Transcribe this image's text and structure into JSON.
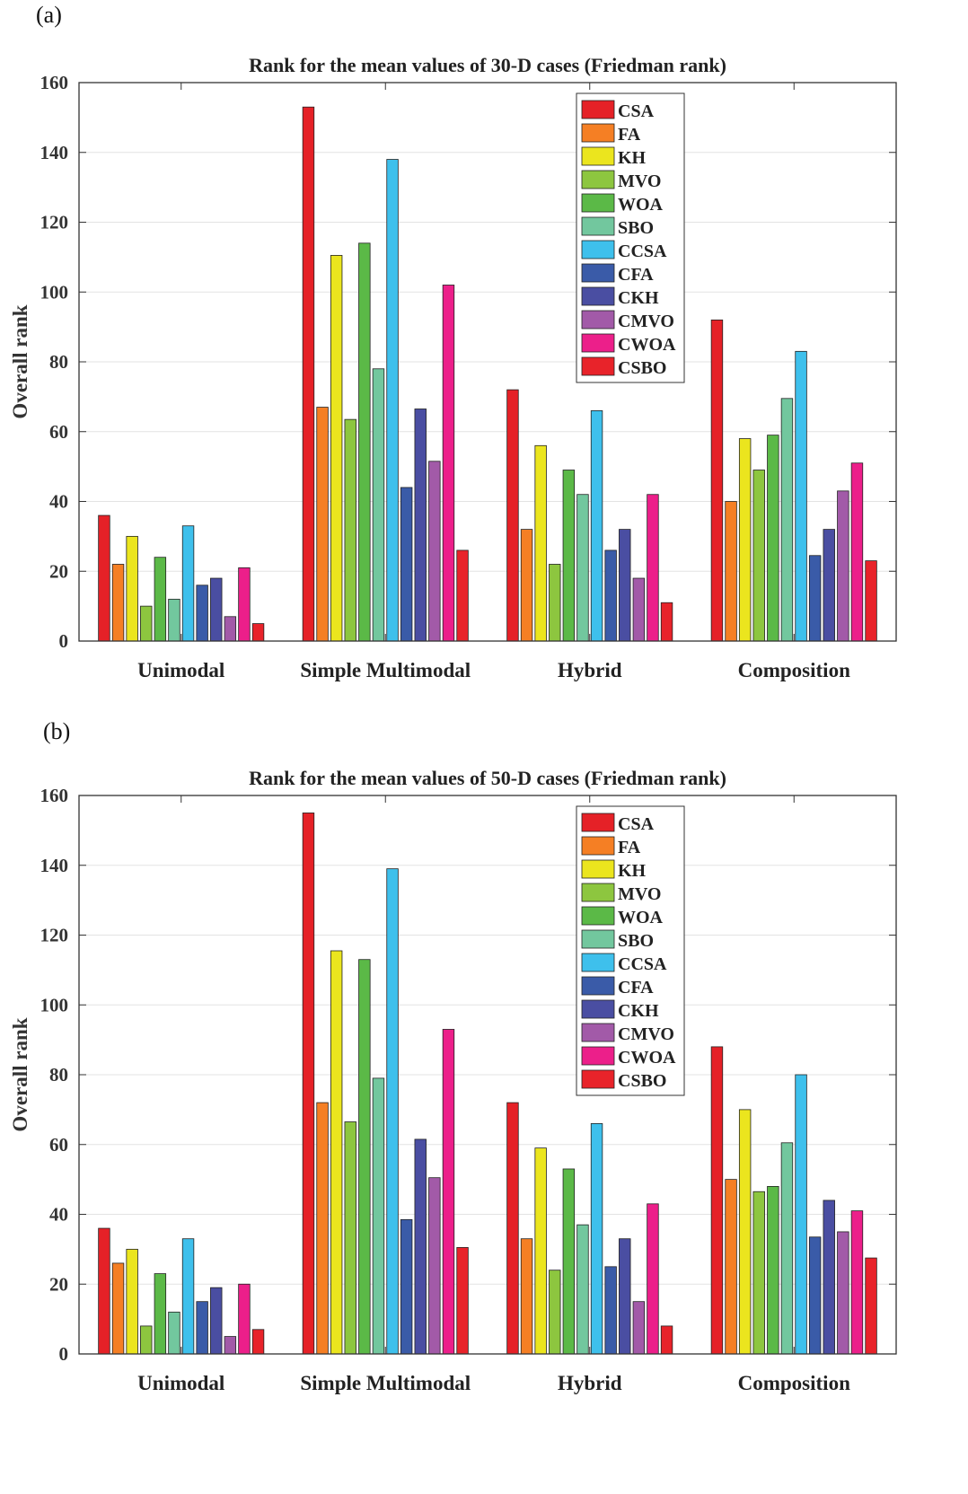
{
  "panels": [
    {
      "label": "(a)"
    },
    {
      "label": "(b)"
    }
  ],
  "series_colors": [
    "#e52127",
    "#f57f24",
    "#ebe51e",
    "#8dc63f",
    "#5bb947",
    "#72c79e",
    "#3ec0ec",
    "#3a5ba8",
    "#4a4ea2",
    "#a25aa8",
    "#ec1f8a",
    "#e8232a"
  ],
  "chart_data": [
    {
      "type": "bar",
      "title": "Rank for the mean values of 30-D cases (Friedman rank)",
      "xlabel": "",
      "ylabel": "Overall rank",
      "ylim": [
        0,
        160
      ],
      "yticks": [
        "0",
        "20",
        "40",
        "60",
        "80",
        "100",
        "120",
        "140",
        "160"
      ],
      "grid": true,
      "legend_position": "top-right",
      "categories": [
        "Unimodal",
        "Simple Multimodal",
        "Hybrid",
        "Composition"
      ],
      "series": [
        {
          "name": "CSA",
          "values": [
            36,
            153,
            72,
            92
          ]
        },
        {
          "name": "FA",
          "values": [
            22,
            67,
            32,
            40
          ]
        },
        {
          "name": "KH",
          "values": [
            30,
            110.5,
            56,
            58
          ]
        },
        {
          "name": "MVO",
          "values": [
            10,
            63.5,
            22,
            49
          ]
        },
        {
          "name": "WOA",
          "values": [
            24,
            114,
            49,
            59
          ]
        },
        {
          "name": "SBO",
          "values": [
            12,
            78,
            42,
            69.5
          ]
        },
        {
          "name": "CCSA",
          "values": [
            33,
            138,
            66,
            83
          ]
        },
        {
          "name": "CFA",
          "values": [
            16,
            44,
            26,
            24.5
          ]
        },
        {
          "name": "CKH",
          "values": [
            18,
            66.5,
            32,
            32
          ]
        },
        {
          "name": "CMVO",
          "values": [
            7,
            51.5,
            18,
            43
          ]
        },
        {
          "name": "CWOA",
          "values": [
            21,
            102,
            42,
            51
          ]
        },
        {
          "name": "CSBO",
          "values": [
            5,
            26,
            11,
            23
          ]
        }
      ]
    },
    {
      "type": "bar",
      "title": "Rank for the mean values of 50-D cases (Friedman rank)",
      "xlabel": "",
      "ylabel": "Overall rank",
      "ylim": [
        0,
        160
      ],
      "yticks": [
        "0",
        "20",
        "40",
        "60",
        "80",
        "100",
        "120",
        "140",
        "160"
      ],
      "grid": true,
      "legend_position": "top-right",
      "categories": [
        "Unimodal",
        "Simple Multimodal",
        "Hybrid",
        "Composition"
      ],
      "series": [
        {
          "name": "CSA",
          "values": [
            36,
            155,
            72,
            88
          ]
        },
        {
          "name": "FA",
          "values": [
            26,
            72,
            33,
            50
          ]
        },
        {
          "name": "KH",
          "values": [
            30,
            115.5,
            59,
            70
          ]
        },
        {
          "name": "MVO",
          "values": [
            8,
            66.5,
            24,
            46.5
          ]
        },
        {
          "name": "WOA",
          "values": [
            23,
            113,
            53,
            48
          ]
        },
        {
          "name": "SBO",
          "values": [
            12,
            79,
            37,
            60.5
          ]
        },
        {
          "name": "CCSA",
          "values": [
            33,
            139,
            66,
            80
          ]
        },
        {
          "name": "CFA",
          "values": [
            15,
            38.5,
            25,
            33.5
          ]
        },
        {
          "name": "CKH",
          "values": [
            19,
            61.5,
            33,
            44
          ]
        },
        {
          "name": "CMVO",
          "values": [
            5,
            50.5,
            15,
            35
          ]
        },
        {
          "name": "CWOA",
          "values": [
            20,
            93,
            43,
            41
          ]
        },
        {
          "name": "CSBO",
          "values": [
            7,
            30.5,
            8,
            27.5
          ]
        }
      ]
    }
  ]
}
